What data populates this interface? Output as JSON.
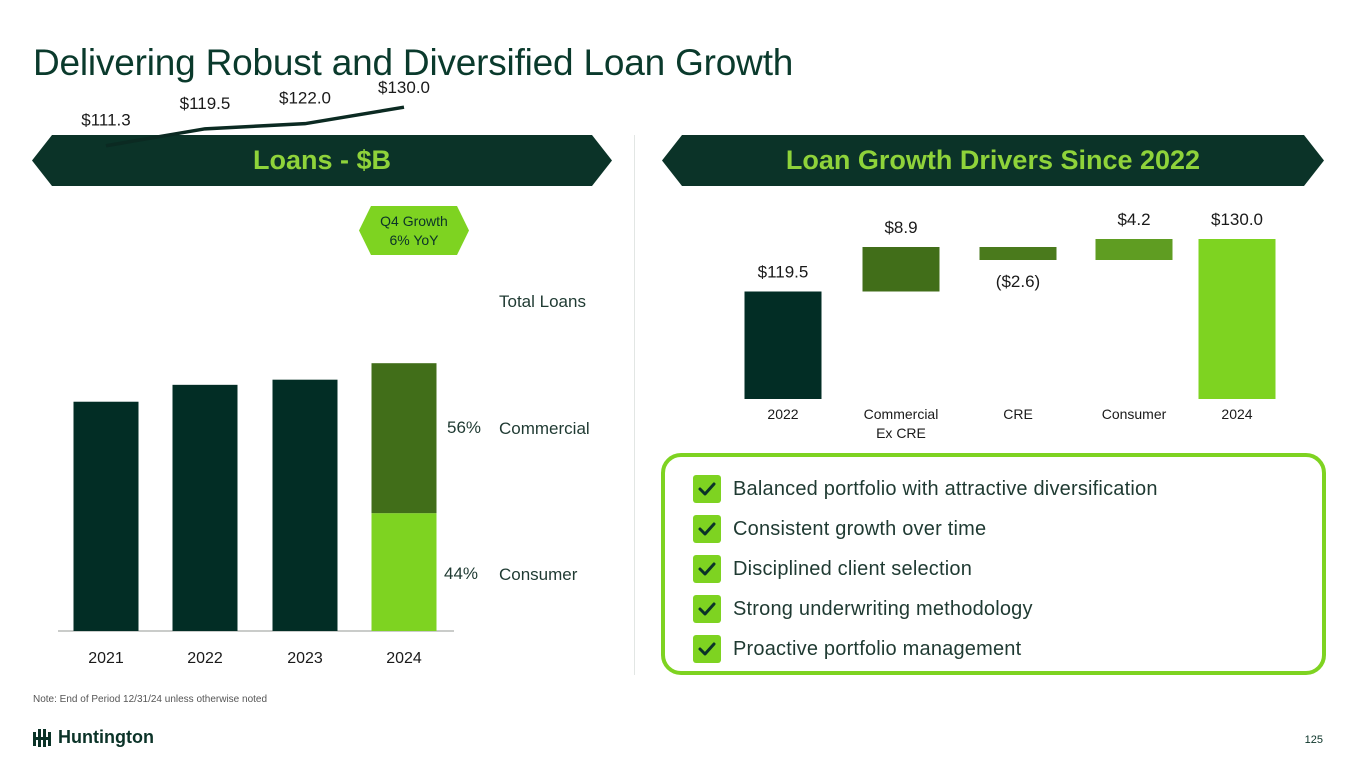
{
  "title": "Delivering Robust and Diversified Loan Growth",
  "left_banner": "Loans - $B",
  "right_banner": "Loan Growth Drivers Since 2022",
  "badge": {
    "line1": "Q4 Growth",
    "line2": "6% YoY"
  },
  "colors": {
    "dark_green": "#022d25",
    "bright_green": "#7ed321",
    "mid_green": "#416e19",
    "olive_green": "#4a7a1c",
    "light_green": "#5f9d22",
    "banner_text": "#8fd33a"
  },
  "chart_data": [
    {
      "type": "bar",
      "categories": [
        "2021",
        "2022",
        "2023",
        "2024"
      ],
      "ylim": [
        0,
        140
      ],
      "series": [
        {
          "name": "Consumer",
          "values": [
            null,
            null,
            null,
            57.2
          ]
        },
        {
          "name": "Commercial",
          "values": [
            null,
            null,
            null,
            72.8
          ]
        }
      ],
      "totals": [
        111.3,
        119.5,
        122.0,
        130.0
      ],
      "total_labels": [
        "$111.3",
        "$119.5",
        "$122.0",
        "$130.0"
      ],
      "line_label": "Total Loans",
      "segment_labels": {
        "commercial": {
          "pct": "56%",
          "name": "Commercial"
        },
        "consumer": {
          "pct": "44%",
          "name": "Consumer"
        }
      }
    },
    {
      "type": "bar",
      "subtype": "waterfall",
      "categories": [
        "2022",
        "Commercial Ex CRE",
        "CRE",
        "Consumer",
        "2024"
      ],
      "category_lines": [
        [
          "2022"
        ],
        [
          "Commercial",
          "Ex CRE"
        ],
        [
          "CRE"
        ],
        [
          "Consumer"
        ],
        [
          "2024"
        ]
      ],
      "values": [
        119.5,
        8.9,
        -2.6,
        4.2,
        130.0
      ],
      "value_labels": [
        "$119.5",
        "$8.9",
        "($2.6)",
        "$4.2",
        "$130.0"
      ]
    }
  ],
  "checklist": [
    "Balanced portfolio with attractive diversification",
    "Consistent growth over time",
    "Disciplined client selection",
    "Strong underwriting methodology",
    "Proactive portfolio management"
  ],
  "note": "Note: End of Period 12/31/24 unless otherwise noted",
  "logo_text": "Huntington",
  "page_number": "125"
}
